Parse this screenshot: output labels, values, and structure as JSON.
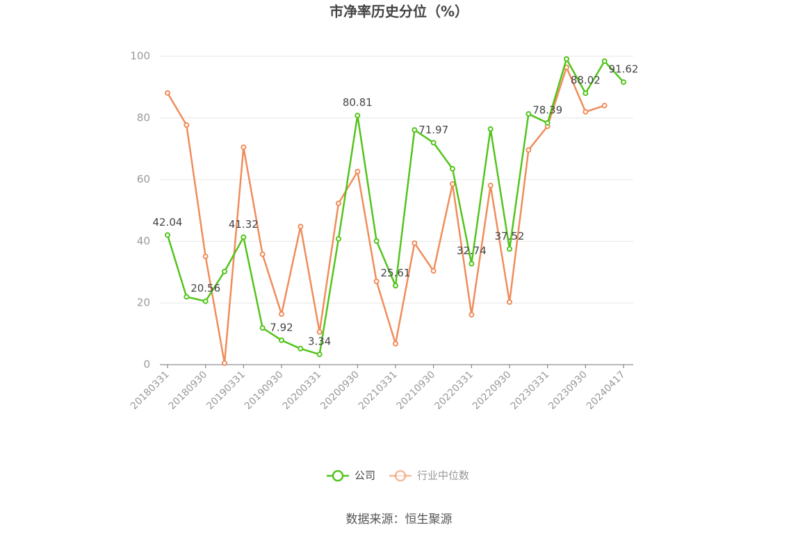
{
  "chart_data": {
    "type": "line",
    "title": "市净率历史分位（%）",
    "categories": [
      "20180331",
      null,
      "20180930",
      null,
      "20190331",
      null,
      "20190930",
      null,
      "20200331",
      null,
      "20200930",
      null,
      "20210331",
      null,
      "20210930",
      null,
      "20220331",
      null,
      "20220930",
      null,
      "20230331",
      null,
      "20230930",
      null,
      "20240417"
    ],
    "series": [
      {
        "name": "公司",
        "color": "#52c41a",
        "values": [
          42.04,
          22.0,
          20.56,
          30.2,
          41.32,
          11.9,
          7.92,
          5.2,
          3.34,
          40.8,
          80.81,
          40.1,
          25.61,
          76.1,
          71.97,
          63.5,
          32.74,
          76.4,
          37.52,
          81.3,
          78.39,
          99.1,
          88.02,
          98.4,
          91.62
        ]
      },
      {
        "name": "行业中位数",
        "color": "#f08c5a",
        "values": [
          88.1,
          77.7,
          35.1,
          0.5,
          70.5,
          35.8,
          16.4,
          44.8,
          10.6,
          52.3,
          62.6,
          27.0,
          6.8,
          39.4,
          30.4,
          58.6,
          16.2,
          58.1,
          20.3,
          69.6,
          77.3,
          96.4,
          82.0,
          84.0,
          null
        ]
      }
    ],
    "ylim": [
      0,
      100
    ],
    "yticks": [
      0,
      20,
      40,
      60,
      80,
      100
    ],
    "grid": true,
    "legend": "bottom",
    "source": "数据来源：恒生聚源"
  }
}
